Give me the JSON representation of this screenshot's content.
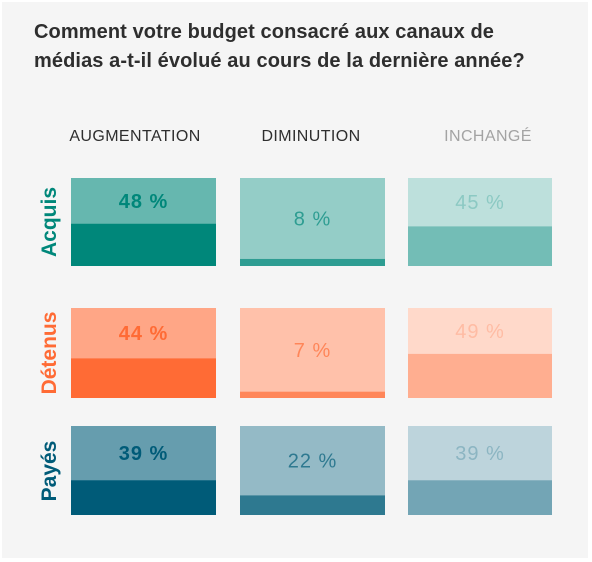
{
  "title": "Comment votre budget consacré aux canaux de médias a-t-il évolué au cours de la dernière année?",
  "colors": {
    "header_dark": "#2e2e2e",
    "header_light": "#a3a3a3",
    "acquis": "#00877a",
    "detenus": "#ff6b35",
    "payes": "#005b78"
  },
  "chart_data": {
    "type": "table",
    "title": "Comment votre budget consacré aux canaux de médias a-t-il évolué au cours de la dernière année?",
    "columns": [
      "AUGMENTATION",
      "DIMINUTION",
      "INCHANGÉ"
    ],
    "rows": [
      "Acquis",
      "Détenus",
      "Payés"
    ],
    "values": [
      [
        48,
        8,
        45
      ],
      [
        44,
        7,
        49
      ],
      [
        39,
        22,
        39
      ]
    ],
    "unit": "%",
    "row_colors": [
      "#00877a",
      "#ff6b35",
      "#005b78"
    ]
  }
}
